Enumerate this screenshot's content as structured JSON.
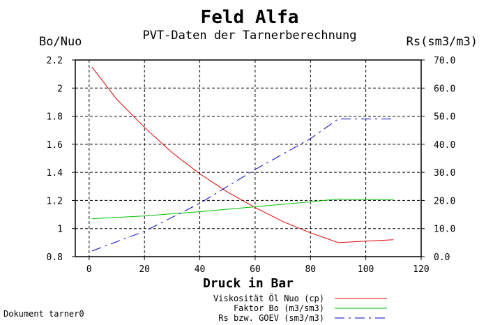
{
  "chart_data": {
    "type": "line",
    "title": "Feld Alfa",
    "subtitle": "PVT-Daten der Tarnerberechnung",
    "xlabel": "Druck in Bar",
    "ylabel_left": "Bo/Nuo",
    "ylabel_right": "Rs(sm3/m3)",
    "xlim": [
      -5,
      120
    ],
    "ylim_left": [
      0.8,
      2.2
    ],
    "ylim_right": [
      0,
      70
    ],
    "x_ticks": [
      0,
      20,
      40,
      60,
      80,
      100,
      120
    ],
    "y_left_ticks": [
      0.8,
      1,
      1.2,
      1.4,
      1.6,
      1.8,
      2,
      2.2
    ],
    "y_left_tick_labels": [
      "0.8",
      "1",
      "1.2",
      "1.4",
      "1.6",
      "1.8",
      "2",
      "2.2"
    ],
    "y_right_ticks": [
      0,
      10,
      20,
      30,
      40,
      50,
      60,
      70
    ],
    "y_right_tick_labels": [
      "0.0",
      "10.0",
      "20.0",
      "30.0",
      "40.0",
      "50.0",
      "60.0",
      "70.0"
    ],
    "grid": true,
    "legend_position": "bottom",
    "series": [
      {
        "name": "Viskosität Öl Nuo (cp)",
        "axis": "left",
        "color": "#e00000",
        "dash": "solid",
        "x": [
          1,
          10,
          20,
          30,
          40,
          50,
          60,
          70,
          80,
          90,
          100,
          110
        ],
        "y": [
          2.15,
          1.92,
          1.72,
          1.54,
          1.39,
          1.26,
          1.15,
          1.05,
          0.97,
          0.9,
          0.91,
          0.92
        ]
      },
      {
        "name": "Faktor Bo (m3/sm3)",
        "axis": "left",
        "color": "#00c000",
        "dash": "solid",
        "x": [
          1,
          20,
          40,
          60,
          80,
          90,
          100,
          110
        ],
        "y": [
          1.07,
          1.09,
          1.12,
          1.155,
          1.19,
          1.21,
          1.205,
          1.205
        ]
      },
      {
        "name": "Rs bzw. GOEV (sm3/m3)",
        "axis": "right",
        "color": "#0000c0",
        "dash": "dashdot",
        "x": [
          1,
          20,
          40,
          60,
          80,
          90,
          100,
          110
        ],
        "y": [
          2,
          9,
          19,
          31,
          42,
          49,
          49,
          49
        ]
      }
    ]
  },
  "document_label": "Dokument tarner0"
}
